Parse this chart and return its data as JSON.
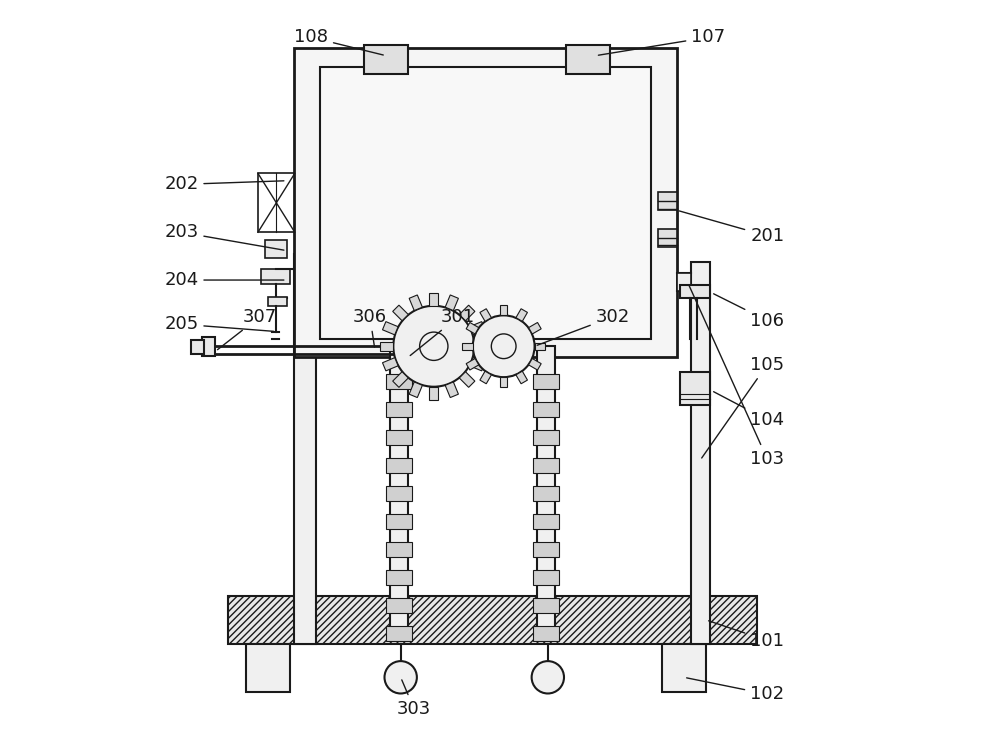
{
  "bg_color": "#ffffff",
  "line_color": "#1a1a1a",
  "label_color": "#1a1a1a",
  "label_fontsize": 13,
  "line_width": 1.5
}
